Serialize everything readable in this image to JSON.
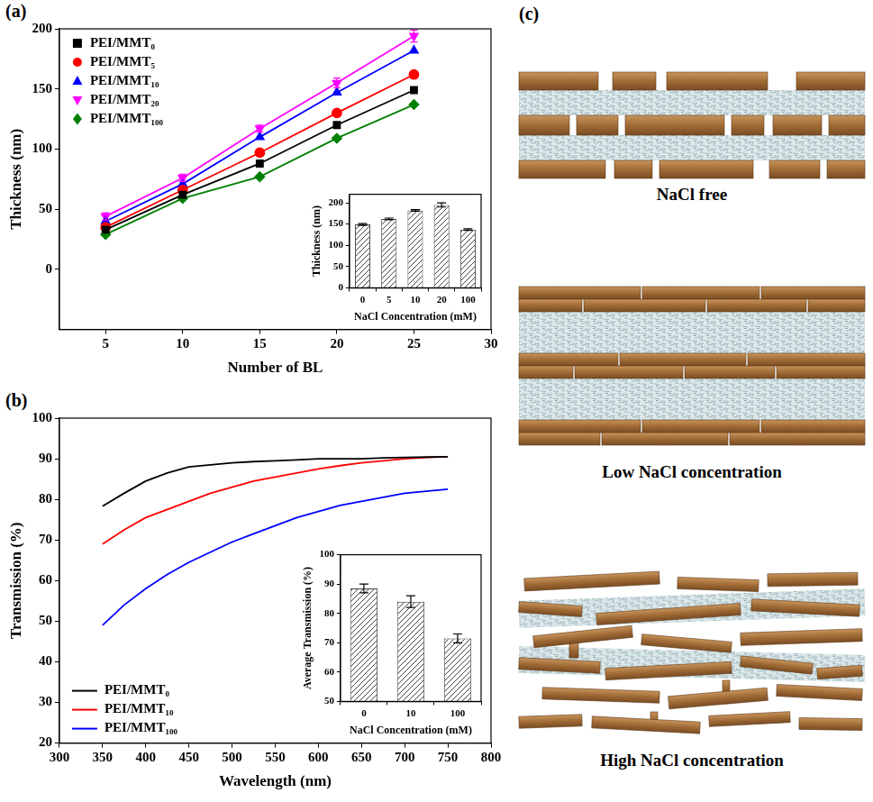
{
  "chart_data": [
    {
      "panel": "(a)",
      "type": "scatter",
      "x_label": "Number of BL",
      "y_label": "Thickness (nm)",
      "x": [
        5,
        10,
        15,
        20,
        25
      ],
      "series": [
        {
          "name": "PEI/MMT₀",
          "color": "#000000",
          "marker": "square",
          "values": [
            33,
            62,
            88,
            120,
            149
          ]
        },
        {
          "name": "PEI/MMT₅",
          "color": "#ff0000",
          "marker": "circle",
          "values": [
            35,
            66,
            97,
            130,
            162
          ]
        },
        {
          "name": "PEI/MMT₁₀",
          "color": "#0000ff",
          "marker": "triangle",
          "values": [
            40,
            71,
            110,
            147,
            182
          ]
        },
        {
          "name": "PEI/MMT₂₀",
          "color": "#ff00ff",
          "marker": "triangle-down",
          "values": [
            44,
            76,
            117,
            155,
            194
          ],
          "errors": [
            3,
            3,
            3,
            4,
            5
          ]
        },
        {
          "name": "PEI/MMT₁₀₀",
          "color": "#008000",
          "marker": "diamond",
          "values": [
            29,
            59,
            77,
            109,
            137
          ]
        }
      ],
      "line_style": "solid",
      "xlim": [
        2,
        30
      ],
      "xticks": [
        5,
        10,
        15,
        20,
        25,
        30
      ],
      "ylim": [
        -50,
        200
      ],
      "yticks": [
        0,
        50,
        100,
        150,
        200
      ],
      "grid": false,
      "legend": "upper left",
      "inset": {
        "type": "bar",
        "x_label": "NaCl Concentration (mM)",
        "y_label": "Thickness (nm)",
        "categories": [
          "0",
          "5",
          "10",
          "20",
          "100"
        ],
        "values": [
          149,
          162,
          182,
          195,
          137
        ],
        "errors": [
          2,
          2,
          2,
          5,
          2
        ],
        "color": "#444444",
        "ylim": [
          0,
          220
        ],
        "yticks": [
          0,
          50,
          100,
          150,
          200
        ],
        "grid": false
      }
    },
    {
      "panel": "(b)",
      "type": "line",
      "x_label": "Wavelength (nm)",
      "y_label": "Transmission (%)",
      "x": [
        350,
        375,
        400,
        425,
        450,
        475,
        500,
        525,
        550,
        575,
        600,
        625,
        650,
        675,
        700,
        725,
        750
      ],
      "series": [
        {
          "name": "PEI/MMT₀",
          "color": "#000000",
          "marker": "none",
          "values": [
            78.3,
            81.5,
            84.5,
            86.5,
            88,
            88.5,
            89,
            89.3,
            89.5,
            89.7,
            90,
            90,
            90,
            90.2,
            90.3,
            90.4,
            90.5
          ]
        },
        {
          "name": "PEI/MMT₁₀",
          "color": "#ff0000",
          "marker": "none",
          "values": [
            69,
            72.5,
            75.5,
            77.5,
            79.5,
            81.5,
            83,
            84.5,
            85.5,
            86.5,
            87.5,
            88.3,
            89,
            89.5,
            90,
            90.3,
            90.5
          ]
        },
        {
          "name": "PEI/MMT₁₀₀",
          "color": "#0000ff",
          "marker": "none",
          "values": [
            49,
            54,
            58,
            61.5,
            64.5,
            67,
            69.5,
            71.5,
            73.5,
            75.5,
            77,
            78.5,
            79.5,
            80.5,
            81.5,
            82,
            82.5
          ]
        }
      ],
      "line_style": "solid",
      "xlim": [
        300,
        800
      ],
      "xticks": [
        300,
        350,
        400,
        450,
        500,
        550,
        600,
        650,
        700,
        750,
        800
      ],
      "ylim": [
        20,
        100
      ],
      "yticks": [
        20,
        30,
        40,
        50,
        60,
        70,
        80,
        90,
        100
      ],
      "grid": false,
      "legend": "lower left",
      "inset": {
        "type": "bar",
        "x_label": "NaCl Concentration (mM)",
        "y_label": "Average Transmission (%)",
        "categories": [
          "0",
          "10",
          "100"
        ],
        "values": [
          88.5,
          84,
          71.5
        ],
        "errors": [
          1.5,
          2,
          1.5
        ],
        "color": "#444444",
        "ylim": [
          50,
          100
        ],
        "yticks": [
          50,
          60,
          70,
          80,
          90,
          100
        ],
        "grid": false
      }
    }
  ],
  "diagram": {
    "panel": "(c)",
    "states": [
      {
        "caption": "NaCl free"
      },
      {
        "caption": "Low NaCl concentration"
      },
      {
        "caption": "High NaCl concentration"
      }
    ]
  }
}
